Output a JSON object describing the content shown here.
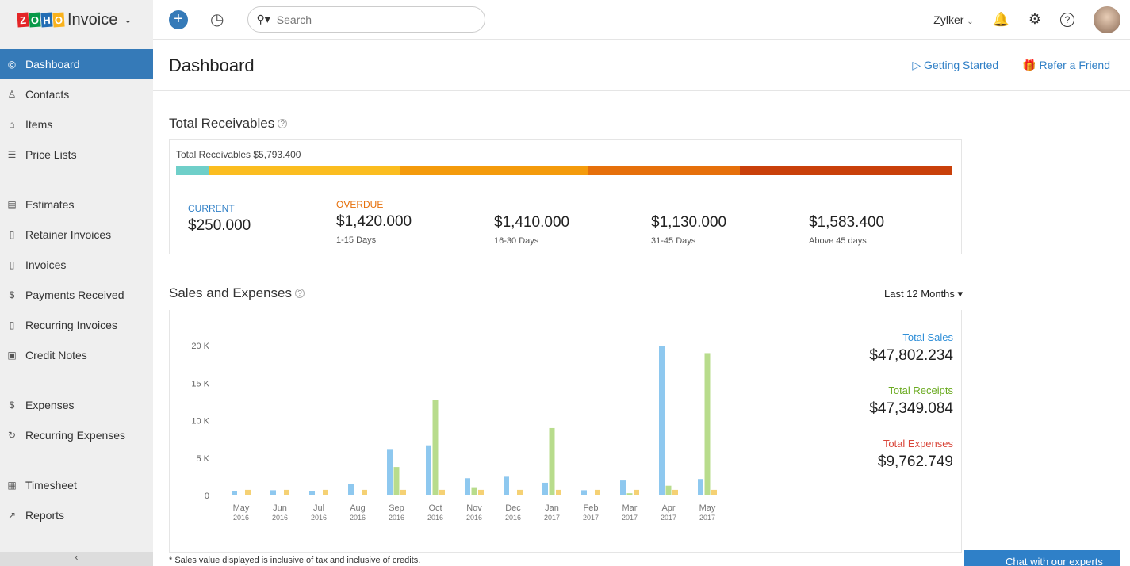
{
  "app": {
    "logo_text": "ZOHO",
    "name": "Invoice"
  },
  "sidebar": {
    "items": [
      {
        "label": "Dashboard",
        "icon": "dashboard-icon"
      },
      {
        "label": "Contacts",
        "icon": "user-icon"
      },
      {
        "label": "Items",
        "icon": "basket-icon"
      },
      {
        "label": "Price Lists",
        "icon": "list-icon"
      },
      {
        "label": "Estimates",
        "icon": "estimate-icon"
      },
      {
        "label": "Retainer Invoices",
        "icon": "document-icon"
      },
      {
        "label": "Invoices",
        "icon": "document-icon"
      },
      {
        "label": "Payments Received",
        "icon": "payment-icon"
      },
      {
        "label": "Recurring Invoices",
        "icon": "document-icon"
      },
      {
        "label": "Credit Notes",
        "icon": "credit-note-icon"
      },
      {
        "label": "Expenses",
        "icon": "expense-icon"
      },
      {
        "label": "Recurring Expenses",
        "icon": "recurring-icon"
      },
      {
        "label": "Timesheet",
        "icon": "calendar-icon"
      },
      {
        "label": "Reports",
        "icon": "chart-icon"
      }
    ]
  },
  "topbar": {
    "search_placeholder": "Search",
    "org": "Zylker"
  },
  "header": {
    "title": "Dashboard",
    "getting_started": "Getting Started",
    "refer": "Refer a Friend"
  },
  "receivables": {
    "title": "Total Receivables",
    "total_label": "Total Receivables $5,793.400",
    "segments_colors": [
      "#6fcfc9",
      "#fbbd20",
      "#f49b0c",
      "#e6700b",
      "#c9400a"
    ],
    "segments_values": [
      250,
      1420,
      1410,
      1130,
      1583.4
    ],
    "current": {
      "label": "CURRENT",
      "value": "$250.000"
    },
    "overdue_label": "OVERDUE",
    "buckets": [
      {
        "value": "$1,420.000",
        "range": "1-15 Days"
      },
      {
        "value": "$1,410.000",
        "range": "16-30 Days"
      },
      {
        "value": "$1,130.000",
        "range": "31-45 Days"
      },
      {
        "value": "$1,583.400",
        "range": "Above 45 days"
      }
    ]
  },
  "sales": {
    "title": "Sales and Expenses",
    "period": "Last 12 Months",
    "total_sales_label": "Total Sales",
    "total_sales": "$47,802.234",
    "total_receipts_label": "Total Receipts",
    "total_receipts": "$47,349.084",
    "total_expenses_label": "Total Expenses",
    "total_expenses": "$9,762.749",
    "footnote": "* Sales value displayed is inclusive of tax and inclusive of credits."
  },
  "chart_data": {
    "type": "bar",
    "ylim": [
      0,
      20000
    ],
    "yticks": [
      "0",
      "5 K",
      "10 K",
      "15 K",
      "20 K"
    ],
    "categories": [
      [
        "May",
        "2016"
      ],
      [
        "Jun",
        "2016"
      ],
      [
        "Jul",
        "2016"
      ],
      [
        "Aug",
        "2016"
      ],
      [
        "Sep",
        "2016"
      ],
      [
        "Oct",
        "2016"
      ],
      [
        "Nov",
        "2016"
      ],
      [
        "Dec",
        "2016"
      ],
      [
        "Jan",
        "2017"
      ],
      [
        "Feb",
        "2017"
      ],
      [
        "Mar",
        "2017"
      ],
      [
        "Apr",
        "2017"
      ],
      [
        "May",
        "2017"
      ]
    ],
    "series": [
      {
        "name": "Sales",
        "color": "#8ec8ef",
        "values": [
          600,
          700,
          600,
          1500,
          6100,
          6700,
          2300,
          2500,
          1700,
          700,
          2000,
          20000,
          2200
        ]
      },
      {
        "name": "Receipts",
        "color": "#b8dc8c",
        "values": [
          0,
          0,
          0,
          0,
          3800,
          12700,
          1100,
          0,
          9000,
          100,
          300,
          1300,
          19000
        ]
      },
      {
        "name": "Expenses",
        "color": "#f5d174",
        "values": [
          750,
          750,
          750,
          750,
          750,
          750,
          750,
          750,
          750,
          750,
          750,
          750,
          750
        ]
      }
    ]
  },
  "chat": {
    "label": "Chat with our experts"
  }
}
